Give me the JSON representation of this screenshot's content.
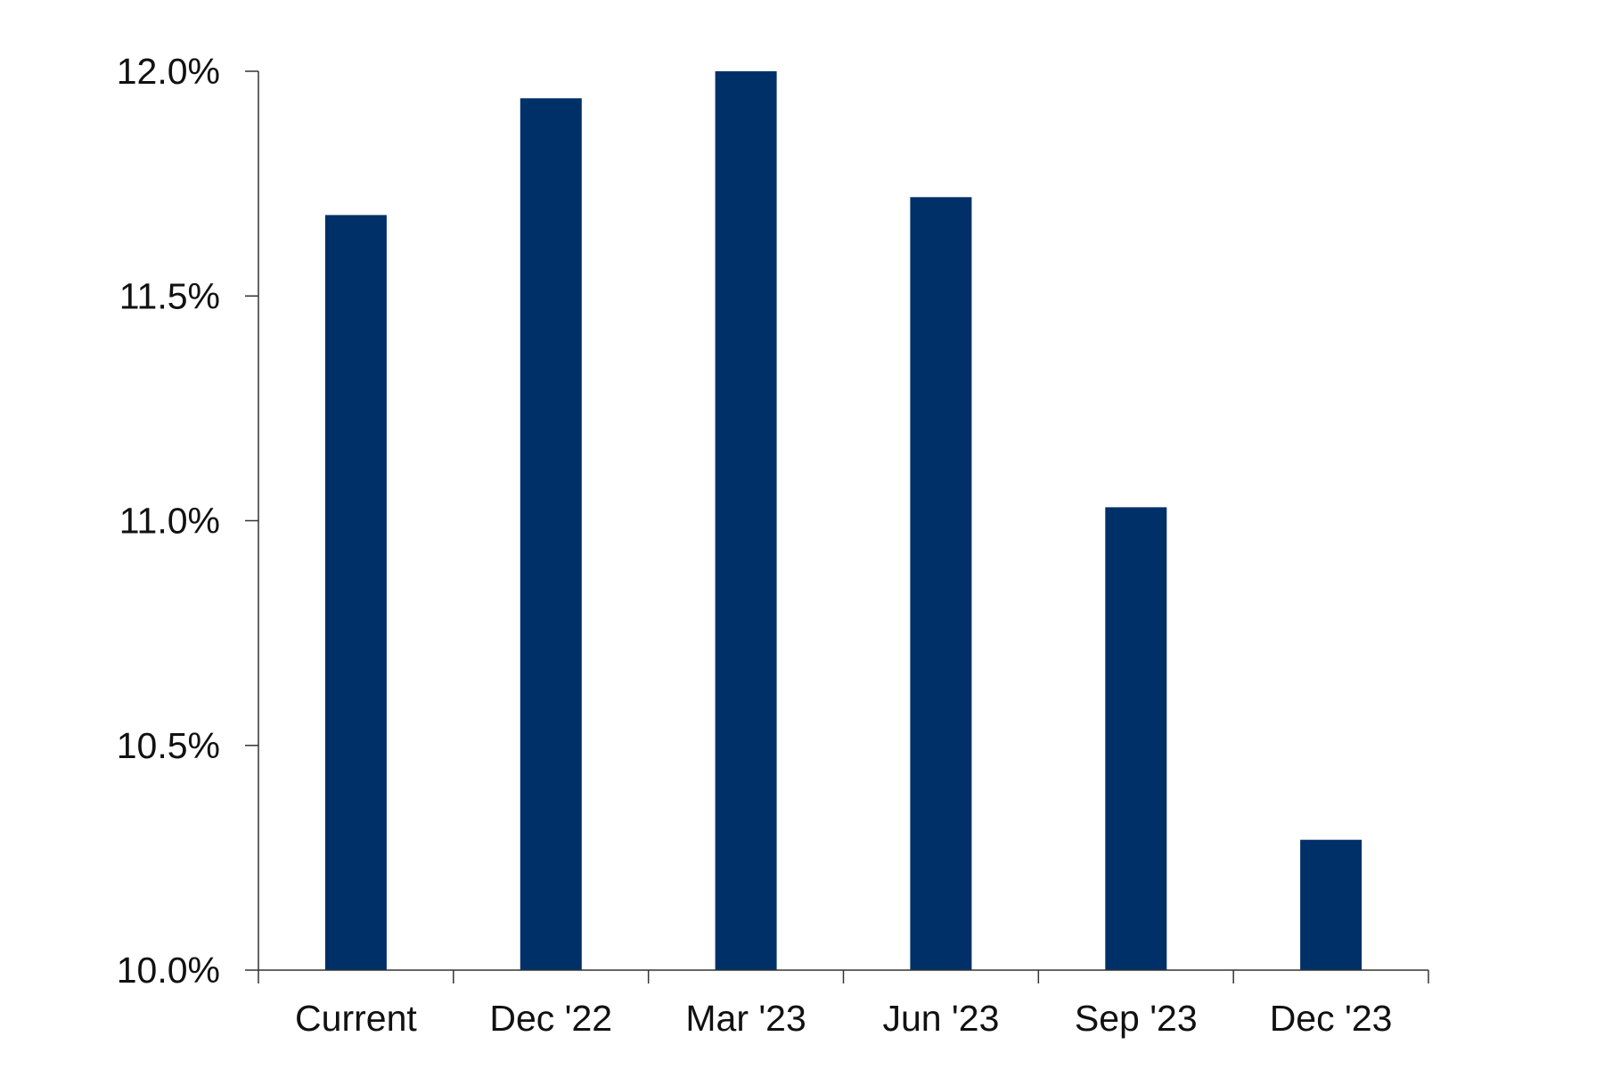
{
  "chart_data": {
    "type": "bar",
    "categories": [
      "Current",
      "Dec '22",
      "Mar '23",
      "Jun '23",
      "Sep '23",
      "Dec '23"
    ],
    "values": [
      11.68,
      11.94,
      12.0,
      11.72,
      11.03,
      10.29
    ],
    "ylim": [
      10.0,
      12.0
    ],
    "yticks": [
      10.0,
      10.5,
      11.0,
      11.5,
      12.0
    ],
    "ytick_labels": [
      "10.0%",
      "10.5%",
      "11.0%",
      "11.5%",
      "12.0%"
    ],
    "grid": false,
    "legend": "none",
    "colors": {
      "bar": "#003068",
      "axis": "#333333"
    }
  }
}
